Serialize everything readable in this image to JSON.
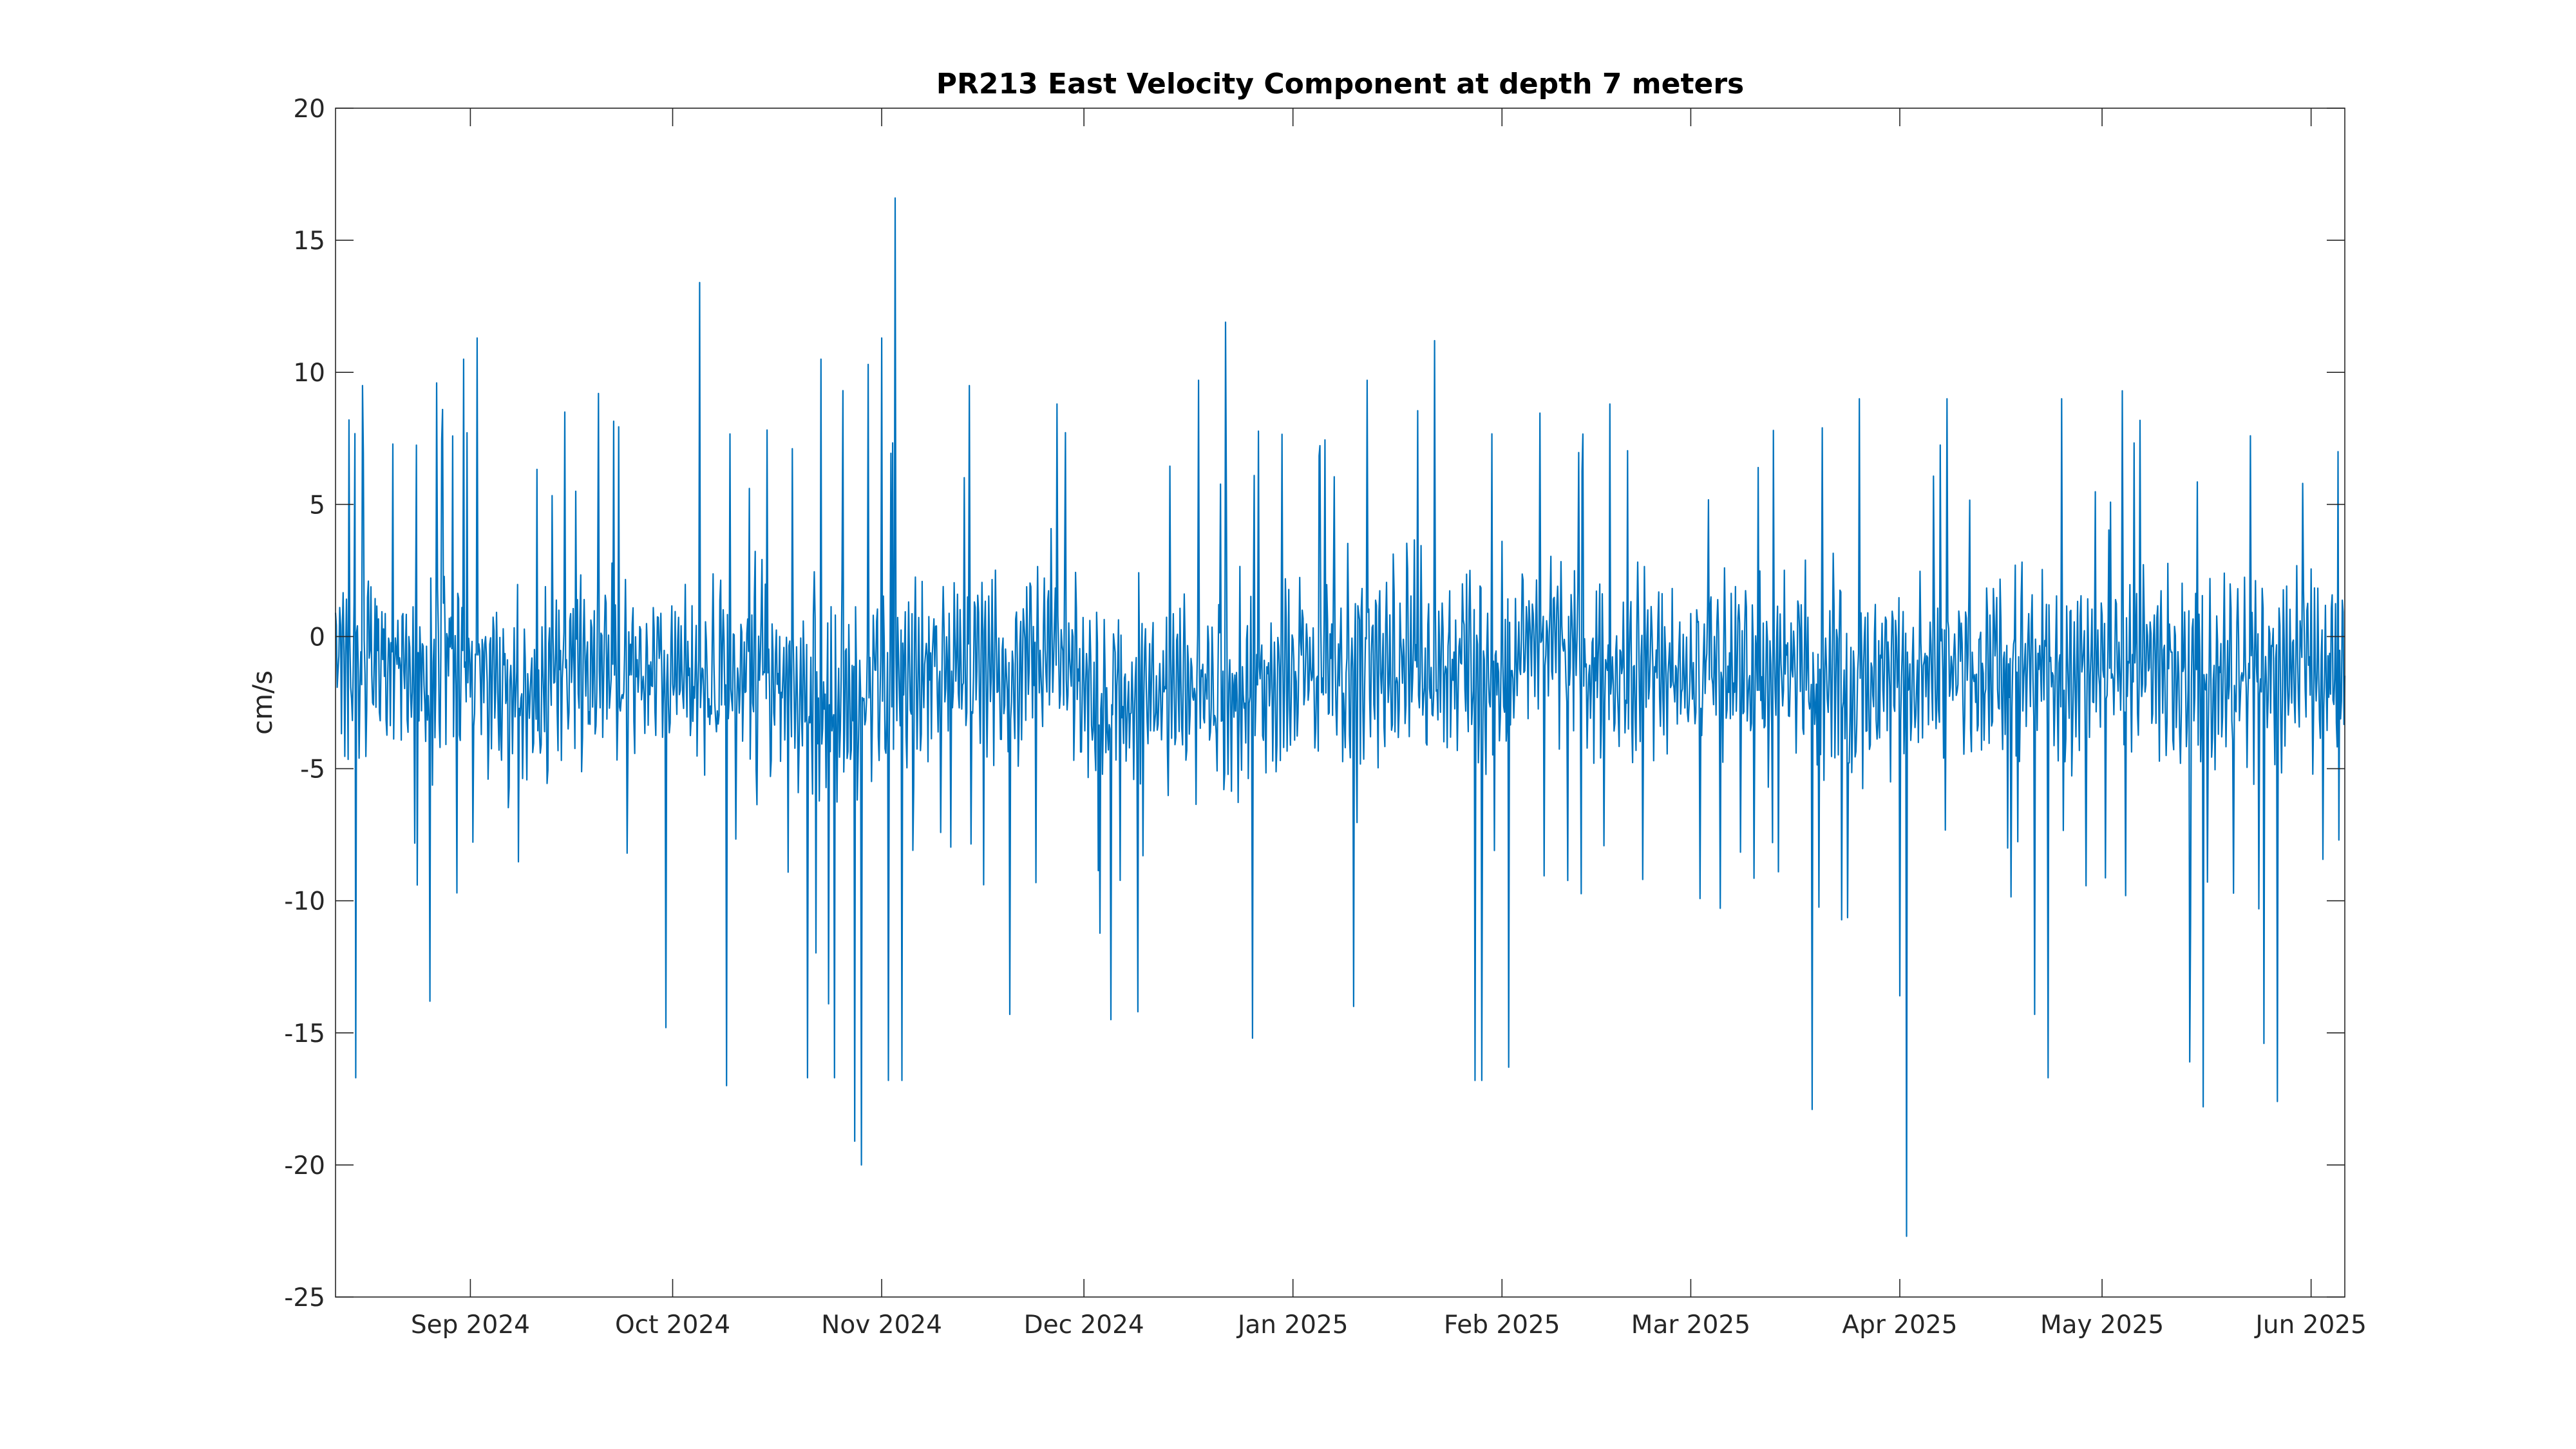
{
  "chart_data": {
    "type": "line",
    "title": "PR213 East Velocity Component at depth 7 meters",
    "xlabel": "",
    "ylabel": "cm/s",
    "x_range": [
      "2024-08-12",
      "2025-06-06"
    ],
    "ylim": [
      -25,
      20
    ],
    "yticks": [
      20,
      15,
      10,
      5,
      0,
      -5,
      -10,
      -15,
      -20,
      -25
    ],
    "ytick_labels": [
      "20",
      "15",
      "10",
      "5",
      "0",
      "-5",
      "-10",
      "-15",
      "-20",
      "-25"
    ],
    "xticks": [
      {
        "date": "2024-09-01",
        "label": "Sep 2024"
      },
      {
        "date": "2024-10-01",
        "label": "Oct 2024"
      },
      {
        "date": "2024-11-01",
        "label": "Nov 2024"
      },
      {
        "date": "2024-12-01",
        "label": "Dec 2024"
      },
      {
        "date": "2025-01-01",
        "label": "Jan 2025"
      },
      {
        "date": "2025-02-01",
        "label": "Feb 2025"
      },
      {
        "date": "2025-03-01",
        "label": "Mar 2025"
      },
      {
        "date": "2025-04-01",
        "label": "Apr 2025"
      },
      {
        "date": "2025-05-01",
        "label": "May 2025"
      },
      {
        "date": "2025-06-01",
        "label": "Jun 2025"
      }
    ],
    "grid": false,
    "series": [
      {
        "color": "#0072BD",
        "sampling": "hourly",
        "x": [
          "2024-08-12",
          "2024-08-15",
          "2024-08-18",
          "2024-08-22",
          "2024-08-26",
          "2024-08-28",
          "2024-09-01",
          "2024-09-05",
          "2024-09-10",
          "2024-09-15",
          "2024-09-20",
          "2024-09-25",
          "2024-10-01",
          "2024-10-05",
          "2024-10-10",
          "2024-10-15",
          "2024-10-20",
          "2024-10-24",
          "2024-10-28",
          "2024-11-01",
          "2024-11-03",
          "2024-11-05",
          "2024-11-10",
          "2024-11-15",
          "2024-11-20",
          "2024-11-25",
          "2024-12-01",
          "2024-12-05",
          "2024-12-10",
          "2024-12-15",
          "2024-12-20",
          "2024-12-25",
          "2025-01-01",
          "2025-01-05",
          "2025-01-10",
          "2025-01-15",
          "2025-01-20",
          "2025-01-25",
          "2025-02-01",
          "2025-02-05",
          "2025-02-10",
          "2025-02-15",
          "2025-02-20",
          "2025-02-25",
          "2025-03-01",
          "2025-03-05",
          "2025-03-10",
          "2025-03-15",
          "2025-03-20",
          "2025-03-25",
          "2025-04-01",
          "2025-04-05",
          "2025-04-10",
          "2025-04-15",
          "2025-04-20",
          "2025-04-25",
          "2025-05-01",
          "2025-05-05",
          "2025-05-10",
          "2025-05-15",
          "2025-05-20",
          "2025-05-25",
          "2025-06-01",
          "2025-06-06"
        ],
        "y_mid": [
          0,
          -1,
          -1,
          -1,
          -2,
          -1,
          -1,
          -2,
          -2,
          -1,
          -1,
          -1,
          -1,
          -2,
          -2,
          -1,
          -2,
          -2,
          -2,
          -2,
          -1,
          -1,
          -1,
          -1,
          -1,
          0,
          -2,
          -2,
          -2,
          -2,
          -2,
          -2,
          -1,
          -1,
          -1,
          -1,
          -1,
          -1,
          -1,
          0,
          0,
          -1,
          -1,
          -1,
          -1,
          -1,
          -1,
          -1,
          -1,
          -2,
          -1,
          -1,
          -1,
          -1,
          -1,
          -1,
          -1,
          -1,
          -1,
          -1,
          -1,
          -1,
          -1,
          -1
        ],
        "y_upper": [
          5,
          4,
          4,
          3,
          4,
          5,
          4,
          4,
          3,
          4,
          5,
          4,
          4,
          5,
          4,
          4,
          3,
          4,
          4,
          4,
          5,
          4,
          4,
          4,
          4,
          5,
          3,
          3,
          3,
          4,
          4,
          4,
          4,
          4,
          5,
          5,
          4,
          4,
          4,
          5,
          5,
          4,
          4,
          4,
          3,
          4,
          3,
          4,
          4,
          4,
          4,
          4,
          4,
          4,
          4,
          4,
          4,
          4,
          5,
          4,
          4,
          4,
          4,
          4
        ],
        "y_lower": [
          -6,
          -7,
          -7,
          -7,
          -8,
          -7,
          -7,
          -8,
          -8,
          -7,
          -8,
          -7,
          -7,
          -8,
          -9,
          -8,
          -9,
          -10,
          -10,
          -9,
          -8,
          -8,
          -7,
          -7,
          -7,
          -6,
          -8,
          -8,
          -8,
          -8,
          -8,
          -9,
          -7,
          -8,
          -8,
          -8,
          -8,
          -9,
          -7,
          -6,
          -6,
          -7,
          -7,
          -7,
          -7,
          -7,
          -7,
          -7,
          -8,
          -8,
          -7,
          -7,
          -7,
          -8,
          -7,
          -7,
          -6,
          -7,
          -7,
          -8,
          -8,
          -7,
          -8,
          -7
        ],
        "peaks": [
          {
            "date": "2024-08-14",
            "value": 8.2
          },
          {
            "date": "2024-08-16",
            "value": 9.5
          },
          {
            "date": "2024-08-15",
            "value": -16.7
          },
          {
            "date": "2024-08-26",
            "value": -13.8
          },
          {
            "date": "2024-08-27",
            "value": 9.6
          },
          {
            "date": "2024-08-31",
            "value": 10.5
          },
          {
            "date": "2024-09-02",
            "value": 11.3
          },
          {
            "date": "2024-09-15",
            "value": 8.5
          },
          {
            "date": "2024-09-20",
            "value": 9.2
          },
          {
            "date": "2024-09-30",
            "value": -14.8
          },
          {
            "date": "2024-10-05",
            "value": 13.4
          },
          {
            "date": "2024-10-09",
            "value": -17.0
          },
          {
            "date": "2024-10-21",
            "value": -16.7
          },
          {
            "date": "2024-10-23",
            "value": 10.5
          },
          {
            "date": "2024-10-25",
            "value": -16.7
          },
          {
            "date": "2024-10-28",
            "value": -19.1
          },
          {
            "date": "2024-10-29",
            "value": -20.0
          },
          {
            "date": "2024-10-30",
            "value": 10.3
          },
          {
            "date": "2024-11-01",
            "value": 11.3
          },
          {
            "date": "2024-11-02",
            "value": -16.8
          },
          {
            "date": "2024-11-03",
            "value": 16.6
          },
          {
            "date": "2024-11-04",
            "value": -16.8
          },
          {
            "date": "2024-11-14",
            "value": 9.5
          },
          {
            "date": "2024-11-20",
            "value": -14.3
          },
          {
            "date": "2024-11-27",
            "value": 8.8
          },
          {
            "date": "2024-12-05",
            "value": -14.5
          },
          {
            "date": "2024-12-09",
            "value": -14.2
          },
          {
            "date": "2024-12-18",
            "value": 9.7
          },
          {
            "date": "2024-12-22",
            "value": 11.9
          },
          {
            "date": "2024-12-26",
            "value": -15.2
          },
          {
            "date": "2025-01-10",
            "value": -14.0
          },
          {
            "date": "2025-01-12",
            "value": 9.7
          },
          {
            "date": "2025-01-22",
            "value": 11.2
          },
          {
            "date": "2025-01-28",
            "value": -16.8
          },
          {
            "date": "2025-01-29",
            "value": -16.8
          },
          {
            "date": "2025-02-02",
            "value": -16.3
          },
          {
            "date": "2025-02-17",
            "value": 8.8
          },
          {
            "date": "2025-03-19",
            "value": -17.9
          },
          {
            "date": "2025-03-26",
            "value": 9.0
          },
          {
            "date": "2025-04-01",
            "value": -13.6
          },
          {
            "date": "2025-04-02",
            "value": -22.7
          },
          {
            "date": "2025-04-08",
            "value": 9.0
          },
          {
            "date": "2025-04-21",
            "value": -14.3
          },
          {
            "date": "2025-04-23",
            "value": -16.7
          },
          {
            "date": "2025-04-25",
            "value": 9.0
          },
          {
            "date": "2025-05-04",
            "value": 9.3
          },
          {
            "date": "2025-05-14",
            "value": -16.1
          },
          {
            "date": "2025-05-16",
            "value": -17.8
          },
          {
            "date": "2025-05-23",
            "value": 7.6
          },
          {
            "date": "2025-05-25",
            "value": -15.4
          },
          {
            "date": "2025-05-27",
            "value": -17.6
          },
          {
            "date": "2025-06-05",
            "value": 7.0
          }
        ]
      }
    ]
  }
}
